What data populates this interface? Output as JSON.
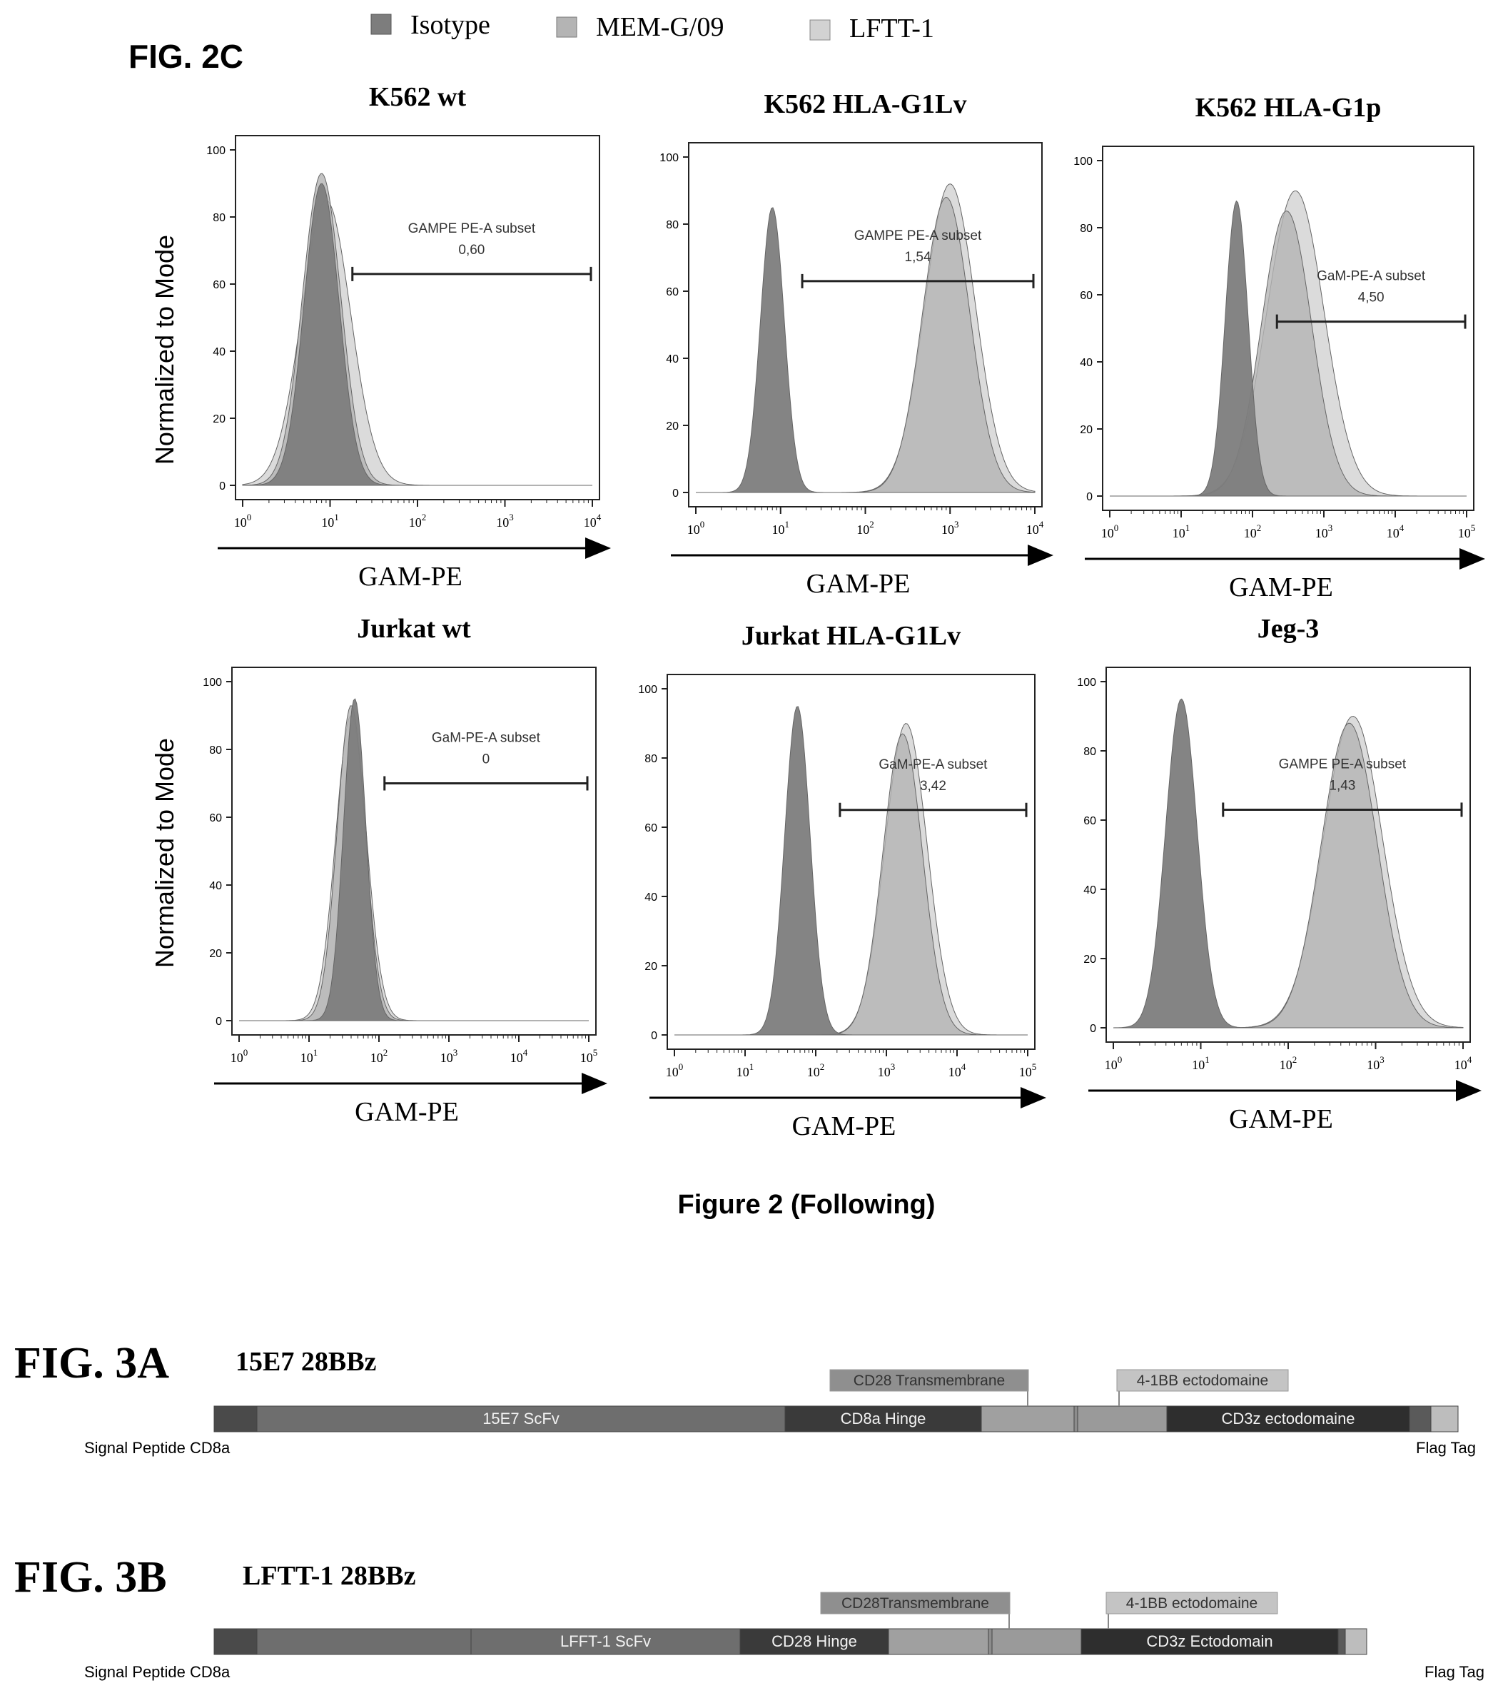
{
  "fig2c": {
    "label": "FIG. 2C",
    "legend": [
      {
        "name": "Isotype",
        "color": "#7d7d7d"
      },
      {
        "name": "MEM-G/09",
        "color": "#b4b4b4"
      },
      {
        "name": "LFTT-1",
        "color": "#d2d2d2"
      }
    ],
    "ylabel": "Normalized to Mode",
    "xlabel": "GAM-PE",
    "caption": "Figure 2 (Following)"
  },
  "chart_data": [
    {
      "type": "area",
      "title": "K562 wt",
      "xlabel": "GAM-PE",
      "ylabel": "Normalized to Mode",
      "x_scale": "log",
      "xlim": [
        1,
        10000
      ],
      "ylim": [
        0,
        100
      ],
      "yticks": [
        0,
        20,
        40,
        60,
        80,
        100
      ],
      "xticks": [
        "10^0",
        "10^1",
        "10^2",
        "10^3",
        "10^4"
      ],
      "series": [
        {
          "name": "Isotype",
          "peaks": [
            {
              "center": 8,
              "height": 90,
              "width": 0.2
            }
          ]
        },
        {
          "name": "MEM-G/09",
          "peaks": [
            {
              "center": 8,
              "height": 93,
              "width": 0.22
            }
          ]
        },
        {
          "name": "LFTT-1",
          "peaks": [
            {
              "center": 9,
              "height": 85,
              "width": 0.28
            }
          ]
        }
      ],
      "gate": {
        "label": "GAMPE PE-A subset",
        "value": "0,60",
        "from": 18,
        "to": 10000,
        "y": 63
      }
    },
    {
      "type": "area",
      "title": "K562 HLA-G1Lv",
      "xlabel": "GAM-PE",
      "ylabel": "Normalized to Mode",
      "x_scale": "log",
      "xlim": [
        1,
        10000
      ],
      "ylim": [
        0,
        100
      ],
      "yticks": [
        0,
        20,
        40,
        60,
        80,
        100
      ],
      "xticks": [
        "10^0",
        "10^1",
        "10^2",
        "10^3",
        "10^4"
      ],
      "series": [
        {
          "name": "Isotype",
          "peaks": [
            {
              "center": 8,
              "height": 85,
              "width": 0.14
            }
          ]
        },
        {
          "name": "MEM-G/09",
          "peaks": [
            {
              "center": 900,
              "height": 88,
              "width": 0.28
            }
          ]
        },
        {
          "name": "LFTT-1",
          "peaks": [
            {
              "center": 1000,
              "height": 92,
              "width": 0.3
            }
          ]
        }
      ],
      "gate": {
        "label": "GAMPE PE-A subset",
        "value": "1,54",
        "from": 18,
        "to": 10000,
        "y": 63
      }
    },
    {
      "type": "area",
      "title": "K562 HLA-G1p",
      "xlabel": "GAM-PE",
      "ylabel": "",
      "x_scale": "log",
      "xlim": [
        1,
        100000
      ],
      "ylim": [
        0,
        100
      ],
      "yticks": [
        0,
        20,
        40,
        60,
        80,
        100
      ],
      "xticks": [
        "10^0",
        "10^1",
        "10^2",
        "10^3",
        "10^4",
        "10^5"
      ],
      "series": [
        {
          "name": "Isotype",
          "peaks": [
            {
              "center": 60,
              "height": 88,
              "width": 0.16
            }
          ]
        },
        {
          "name": "MEM-G/09",
          "peaks": [
            {
              "center": 300,
              "height": 85,
              "width": 0.35
            }
          ]
        },
        {
          "name": "LFTT-1",
          "peaks": [
            {
              "center": 400,
              "height": 91,
              "width": 0.4
            }
          ]
        }
      ],
      "gate": {
        "label": "GaM-PE-A subset",
        "value": "4,50",
        "from": 220,
        "to": 100000,
        "y": 52
      }
    },
    {
      "type": "area",
      "title": "Jurkat wt",
      "xlabel": "GAM-PE",
      "ylabel": "Normalized to Mode",
      "x_scale": "log",
      "xlim": [
        1,
        100000
      ],
      "ylim": [
        0,
        100
      ],
      "yticks": [
        0,
        20,
        40,
        60,
        80,
        100
      ],
      "xticks": [
        "10^0",
        "10^1",
        "10^2",
        "10^3",
        "10^4",
        "10^5"
      ],
      "series": [
        {
          "name": "Isotype",
          "peaks": [
            {
              "center": 45,
              "height": 95,
              "width": 0.16
            }
          ]
        },
        {
          "name": "MEM-G/09",
          "peaks": [
            {
              "center": 40,
              "height": 93,
              "width": 0.2
            }
          ]
        },
        {
          "name": "LFTT-1",
          "peaks": [
            {
              "center": 40,
              "height": 90,
              "width": 0.22
            }
          ]
        }
      ],
      "gate": {
        "label": "GaM-PE-A subset",
        "value": "0",
        "from": 120,
        "to": 100000,
        "y": 70
      }
    },
    {
      "type": "area",
      "title": "Jurkat HLA-G1Lv",
      "xlabel": "GAM-PE",
      "ylabel": "",
      "x_scale": "log",
      "xlim": [
        1,
        100000
      ],
      "ylim": [
        0,
        100
      ],
      "yticks": [
        0,
        20,
        40,
        60,
        80,
        100
      ],
      "xticks": [
        "10^0",
        "10^1",
        "10^2",
        "10^3",
        "10^4",
        "10^5"
      ],
      "series": [
        {
          "name": "Isotype",
          "peaks": [
            {
              "center": 55,
              "height": 95,
              "width": 0.18
            }
          ]
        },
        {
          "name": "MEM-G/09",
          "peaks": [
            {
              "center": 1700,
              "height": 87,
              "width": 0.28
            }
          ]
        },
        {
          "name": "LFTT-1",
          "peaks": [
            {
              "center": 1900,
              "height": 90,
              "width": 0.3
            }
          ]
        }
      ],
      "gate": {
        "label": "GaM-PE-A subset",
        "value": "3,42",
        "from": 220,
        "to": 100000,
        "y": 65
      }
    },
    {
      "type": "area",
      "title": "Jeg-3",
      "xlabel": "GAM-PE",
      "ylabel": "",
      "x_scale": "log",
      "xlim": [
        1,
        10000
      ],
      "ylim": [
        0,
        100
      ],
      "yticks": [
        0,
        20,
        40,
        60,
        80,
        100
      ],
      "xticks": [
        "10^0",
        "10^1",
        "10^2",
        "10^3",
        "10^4"
      ],
      "series": [
        {
          "name": "Isotype",
          "peaks": [
            {
              "center": 6,
              "height": 95,
              "width": 0.18
            }
          ]
        },
        {
          "name": "MEM-G/09",
          "peaks": [
            {
              "center": 500,
              "height": 88,
              "width": 0.32
            }
          ]
        },
        {
          "name": "LFTT-1",
          "peaks": [
            {
              "center": 550,
              "height": 90,
              "width": 0.34
            }
          ]
        }
      ],
      "gate": {
        "label": "GAMPE PE-A subset",
        "value": "1,43",
        "from": 18,
        "to": 10000,
        "y": 63
      }
    }
  ],
  "fig3a": {
    "label": "FIG. 3A",
    "construct": "15E7 28BBz",
    "segments": [
      {
        "label": "",
        "color": "#4a4a4a"
      },
      {
        "label": "15E7 ScFv",
        "color": "#6e6e6e"
      },
      {
        "label": "CD8a Hinge",
        "color": "#3a3a3a"
      },
      {
        "label": "",
        "color": "#a0a0a0"
      },
      {
        "label": "",
        "color": "#8c8c8c"
      },
      {
        "label": "",
        "color": "#9a9a9a"
      },
      {
        "label": "CD3z ectodomaine",
        "color": "#2e2e2e"
      },
      {
        "label": "",
        "color": "#5a5a5a"
      },
      {
        "label": "",
        "color": "#bdbdbd"
      }
    ],
    "callouts": [
      "CD28 Transmembrane",
      "4-1BB ectodomaine"
    ],
    "left_label": "Signal Peptide CD8a",
    "right_label": "Flag Tag"
  },
  "fig3b": {
    "label": "FIG. 3B",
    "construct": "LFTT-1 28BBz",
    "segments": [
      {
        "label": "",
        "color": "#4a4a4a"
      },
      {
        "label": "",
        "color": "#6e6e6e"
      },
      {
        "label": "LFFT-1 ScFv",
        "color": "#6e6e6e"
      },
      {
        "label": "CD28 Hinge",
        "color": "#3a3a3a"
      },
      {
        "label": "",
        "color": "#a0a0a0"
      },
      {
        "label": "",
        "color": "#8c8c8c"
      },
      {
        "label": "",
        "color": "#9a9a9a"
      },
      {
        "label": "CD3z Ectodomain",
        "color": "#2e2e2e"
      },
      {
        "label": "",
        "color": "#5a5a5a"
      },
      {
        "label": "",
        "color": "#bdbdbd"
      }
    ],
    "callouts": [
      "CD28Transmembrane",
      "4-1BB ectodomaine"
    ],
    "left_label": "Signal Peptide CD8a",
    "right_label": "Flag Tag"
  }
}
